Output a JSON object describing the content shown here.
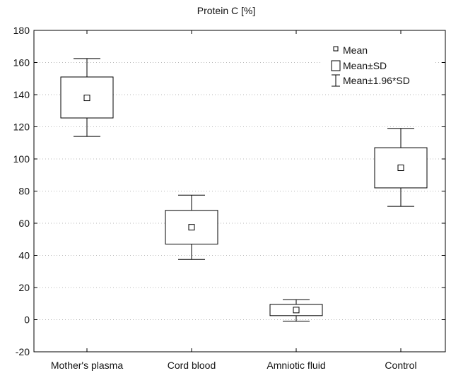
{
  "chart_data": {
    "type": "box",
    "title": "Protein C  [%]",
    "xlabel": "",
    "ylabel": "",
    "ylim": [
      -20,
      180
    ],
    "yticks": [
      -20,
      0,
      20,
      40,
      60,
      80,
      100,
      120,
      140,
      160,
      180
    ],
    "grid": true,
    "categories": [
      "Mother's plasma",
      "Cord blood",
      "Amniotic fluid",
      "Control"
    ],
    "series": [
      {
        "mean": [
          138,
          57.5,
          6,
          94.5
        ],
        "mean_minus_sd": [
          125.5,
          47,
          2.5,
          82
        ],
        "mean_plus_sd": [
          151,
          68,
          9.5,
          107
        ],
        "mean_minus_1_96sd": [
          114,
          37.5,
          -1,
          70.5
        ],
        "mean_plus_1_96sd": [
          162.5,
          77.5,
          12.5,
          119
        ]
      }
    ],
    "legend": {
      "position": "top-right",
      "entries": [
        "Mean",
        "Mean±SD",
        "Mean±1.96*SD"
      ]
    }
  }
}
